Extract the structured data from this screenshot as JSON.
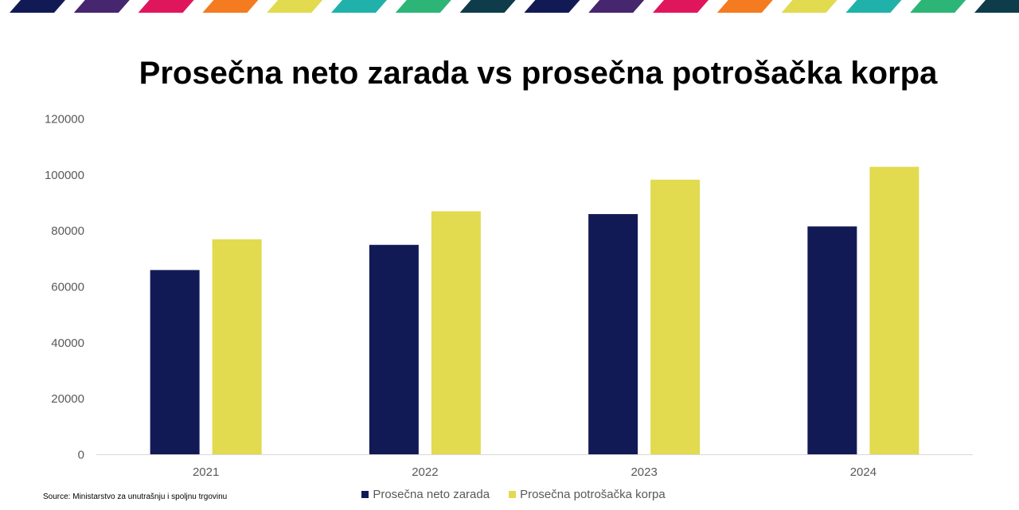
{
  "stripe_colors": [
    "#121a56",
    "#46266e",
    "#e0165d",
    "#f47b20",
    "#e2da4f",
    "#20b2aa",
    "#2db577",
    "#0e3c4a"
  ],
  "chart_data": {
    "type": "bar",
    "title": "Prosečna neto zarada vs prosečna potrošačka korpa",
    "categories": [
      "2021",
      "2022",
      "2023",
      "2024"
    ],
    "series": [
      {
        "name": "Prosečna neto zarada",
        "color": "#121a56",
        "values": [
          66000,
          75000,
          86000,
          81600
        ]
      },
      {
        "name": "Prosečna potrošačka korpa",
        "color": "#e2da4f",
        "values": [
          77000,
          87000,
          98300,
          102900
        ]
      }
    ],
    "yticks": [
      "0",
      "20000",
      "40000",
      "60000",
      "80000",
      "100000",
      "120000"
    ],
    "ylim": [
      0,
      120000
    ],
    "grid": false,
    "legend_position": "bottom"
  },
  "source": "Source: Ministarstvo za unutrašnju i spoljnu trgovinu"
}
